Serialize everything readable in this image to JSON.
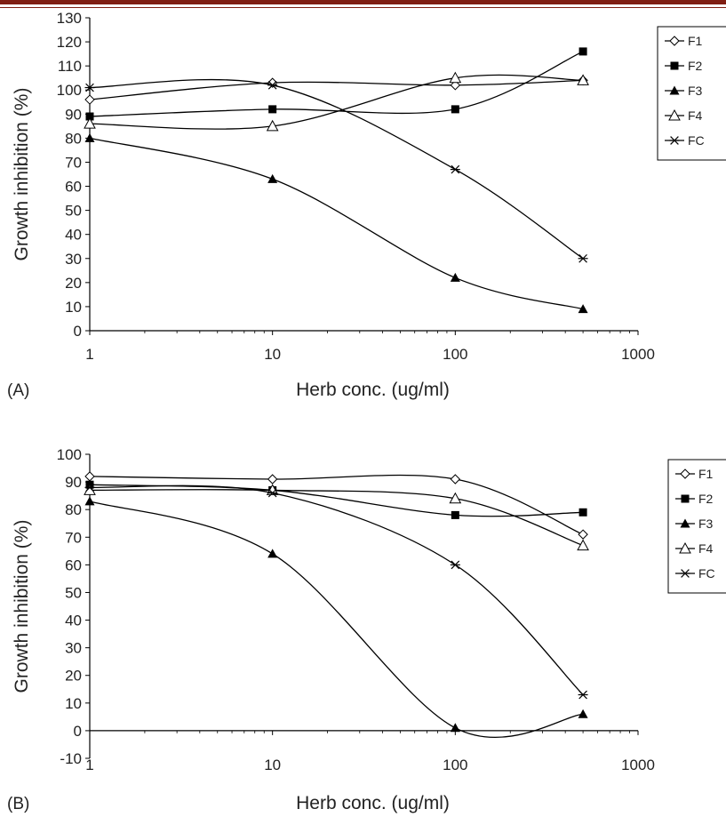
{
  "header_bar_color": "#7f1d12",
  "chart_data": [
    {
      "type": "line",
      "panel_label": "(A)",
      "xlabel": "Herb conc. (ug/ml)",
      "ylabel": "Growth inhibition (%)",
      "xscale": "log",
      "xlim": [
        1,
        1000
      ],
      "ylim": [
        0,
        130
      ],
      "xticks": [
        "1",
        "10",
        "100",
        "1000"
      ],
      "yticks": [
        "0",
        "10",
        "20",
        "30",
        "40",
        "50",
        "60",
        "70",
        "80",
        "90",
        "100",
        "110",
        "120",
        "130"
      ],
      "x": [
        1,
        10,
        100,
        500
      ],
      "legend_position": "right",
      "series": [
        {
          "name": "F1",
          "marker": "diamond-open",
          "values": [
            96,
            103,
            102,
            104
          ]
        },
        {
          "name": "F2",
          "marker": "square-filled",
          "values": [
            89,
            92,
            92,
            116
          ]
        },
        {
          "name": "F3",
          "marker": "triangle-filled",
          "values": [
            80,
            63,
            22,
            9
          ]
        },
        {
          "name": "F4",
          "marker": "triangle-open",
          "values": [
            86,
            85,
            105,
            104
          ]
        },
        {
          "name": "FC",
          "marker": "star",
          "values": [
            101,
            102,
            67,
            30
          ]
        }
      ]
    },
    {
      "type": "line",
      "panel_label": "(B)",
      "xlabel": "Herb conc. (ug/ml)",
      "ylabel": "Growth inhibition (%)",
      "xscale": "log",
      "xlim": [
        1,
        1000
      ],
      "ylim": [
        -10,
        100
      ],
      "xticks": [
        "1",
        "10",
        "100",
        "1000"
      ],
      "yticks": [
        "-10",
        "0",
        "10",
        "20",
        "30",
        "40",
        "50",
        "60",
        "70",
        "80",
        "90",
        "100"
      ],
      "x": [
        1,
        10,
        100,
        500
      ],
      "legend_position": "right",
      "series": [
        {
          "name": "F1",
          "marker": "diamond-open",
          "values": [
            92,
            91,
            91,
            71
          ]
        },
        {
          "name": "F2",
          "marker": "square-filled",
          "values": [
            89,
            87,
            78,
            79
          ]
        },
        {
          "name": "F3",
          "marker": "triangle-filled",
          "values": [
            83,
            64,
            1,
            6
          ]
        },
        {
          "name": "F4",
          "marker": "triangle-open",
          "values": [
            87,
            87,
            84,
            67
          ]
        },
        {
          "name": "FC",
          "marker": "star",
          "values": [
            88,
            86,
            60,
            13
          ]
        }
      ]
    }
  ]
}
